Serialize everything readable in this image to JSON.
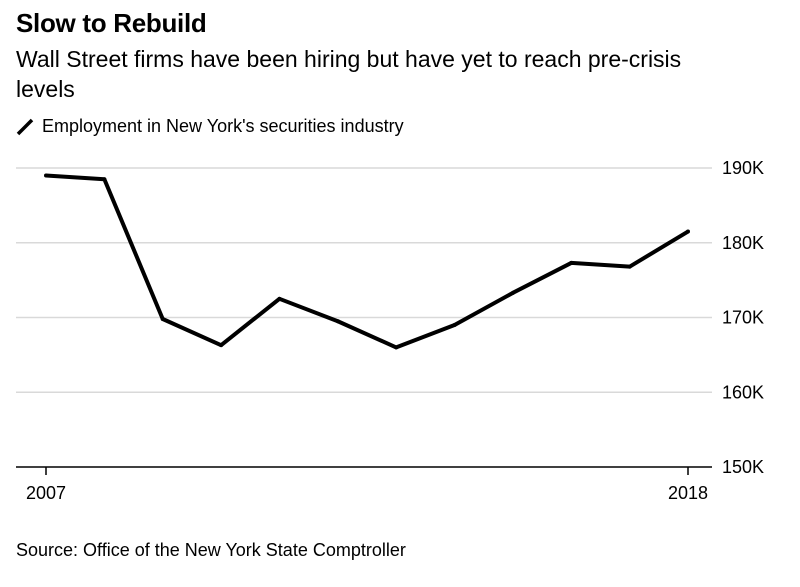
{
  "title": "Slow to Rebuild",
  "subtitle": "Wall Street firms have been hiring but have yet to reach pre-crisis levels",
  "source": "Source: Office of the New York State Comptroller",
  "colors": {
    "line": "#000000",
    "grid": "#d9d9d9",
    "axis": "#000000"
  },
  "chart_data": {
    "type": "line",
    "title": "Slow to Rebuild",
    "subtitle": "Wall Street firms have been hiring but have yet to reach pre-crisis levels",
    "x": [
      2007,
      2008,
      2009,
      2010,
      2011,
      2012,
      2013,
      2014,
      2015,
      2016,
      2017,
      2018
    ],
    "series": [
      {
        "name": "Employment in New York's securities industry",
        "values": [
          189000,
          188500,
          169800,
          166300,
          172500,
          169500,
          166000,
          169000,
          173300,
          177300,
          176800,
          181500
        ]
      }
    ],
    "x_tick_labels": [
      "2007",
      "2018"
    ],
    "y_ticks": [
      150000,
      160000,
      170000,
      180000,
      190000
    ],
    "y_tick_labels": [
      "150K",
      "160K",
      "170K",
      "180K",
      "190K"
    ],
    "ylim": [
      150000,
      190000
    ],
    "xlim": [
      2007,
      2018
    ],
    "xlabel": "",
    "ylabel": "",
    "grid": true,
    "y_axis_position": "right",
    "legend_placement": "top-left"
  }
}
